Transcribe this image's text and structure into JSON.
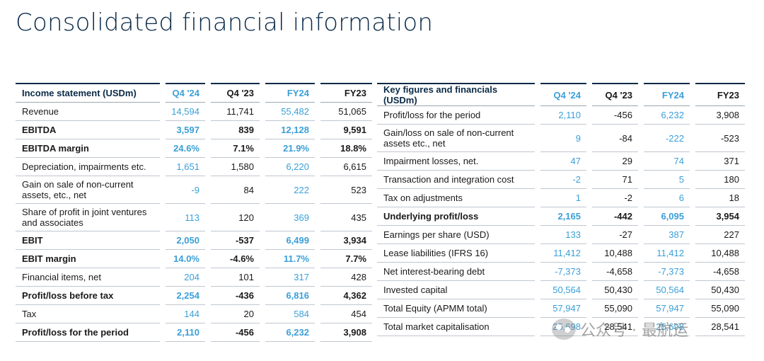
{
  "title": "Consolidated financial information",
  "left": {
    "headers": [
      "Income statement (USDm)",
      "Q4 '24",
      "Q4 '23",
      "FY24",
      "FY23"
    ],
    "rows": [
      {
        "label": "Revenue",
        "v": [
          "14,594",
          "11,741",
          "55,482",
          "51,065"
        ],
        "bold": false
      },
      {
        "label": "EBITDA",
        "v": [
          "3,597",
          "839",
          "12,128",
          "9,591"
        ],
        "bold": true
      },
      {
        "label": "EBITDA margin",
        "v": [
          "24.6%",
          "7.1%",
          "21.9%",
          "18.8%"
        ],
        "bold": true
      },
      {
        "label": "Depreciation, impairments etc.",
        "v": [
          "1,651",
          "1,580",
          "6,220",
          "6,615"
        ],
        "bold": false
      },
      {
        "label": "Gain on sale of non-current assets, etc., net",
        "v": [
          "-9",
          "84",
          "222",
          "523"
        ],
        "bold": false
      },
      {
        "label": "Share of profit in joint ventures and associates",
        "v": [
          "113",
          "120",
          "369",
          "435"
        ],
        "bold": false
      },
      {
        "label": "EBIT",
        "v": [
          "2,050",
          "-537",
          "6,499",
          "3,934"
        ],
        "bold": true
      },
      {
        "label": "EBIT margin",
        "v": [
          "14.0%",
          "-4.6%",
          "11.7%",
          "7.7%"
        ],
        "bold": true
      },
      {
        "label": "Financial items, net",
        "v": [
          "204",
          "101",
          "317",
          "428"
        ],
        "bold": false
      },
      {
        "label": "Profit/loss before tax",
        "v": [
          "2,254",
          "-436",
          "6,816",
          "4,362"
        ],
        "bold": true
      },
      {
        "label": "Tax",
        "v": [
          "144",
          "20",
          "584",
          "454"
        ],
        "bold": false
      },
      {
        "label": "Profit/loss for the period",
        "v": [
          "2,110",
          "-456",
          "6,232",
          "3,908"
        ],
        "bold": true
      }
    ]
  },
  "right": {
    "headers": [
      "Key figures and financials (USDm)",
      "Q4 '24",
      "Q4 '23",
      "FY24",
      "FY23"
    ],
    "rows": [
      {
        "label": "Profit/loss for the period",
        "v": [
          "2,110",
          "-456",
          "6,232",
          "3,908"
        ],
        "bold": false
      },
      {
        "label": "Gain/loss on sale of non-current assets etc., net",
        "v": [
          "9",
          "-84",
          "-222",
          "-523"
        ],
        "bold": false
      },
      {
        "label": "Impairment losses, net.",
        "v": [
          "47",
          "29",
          "74",
          "371"
        ],
        "bold": false
      },
      {
        "label": "Transaction and integration cost",
        "v": [
          "-2",
          "71",
          "5",
          "180"
        ],
        "bold": false
      },
      {
        "label": "Tax on adjustments",
        "v": [
          "1",
          "-2",
          "6",
          "18"
        ],
        "bold": false
      },
      {
        "label": "Underlying profit/loss",
        "v": [
          "2,165",
          "-442",
          "6,095",
          "3,954"
        ],
        "bold": true
      },
      {
        "label": "Earnings per share (USD)",
        "v": [
          "133",
          "-27",
          "387",
          "227"
        ],
        "bold": false
      },
      {
        "label": "Lease liabilities (IFRS 16)",
        "v": [
          "11,412",
          "10,488",
          "11,412",
          "10,488"
        ],
        "bold": false
      },
      {
        "label": "Net interest-bearing debt",
        "v": [
          "-7,373",
          "-4,658",
          "-7,373",
          "-4,658"
        ],
        "bold": false
      },
      {
        "label": "Invested capital",
        "v": [
          "50,564",
          "50,430",
          "50,564",
          "50,430"
        ],
        "bold": false
      },
      {
        "label": "Total Equity (APMM total)",
        "v": [
          "57,947",
          "55,090",
          "57,947",
          "55,090"
        ],
        "bold": false
      },
      {
        "label": "Total market capitalisation",
        "v": [
          "25,698",
          "28,541",
          "25,698",
          "28,541"
        ],
        "bold": false
      }
    ]
  },
  "watermark": "公众号 · 最航运",
  "colors": {
    "title": "#0a2a47",
    "accent": "#3a9fd8"
  }
}
